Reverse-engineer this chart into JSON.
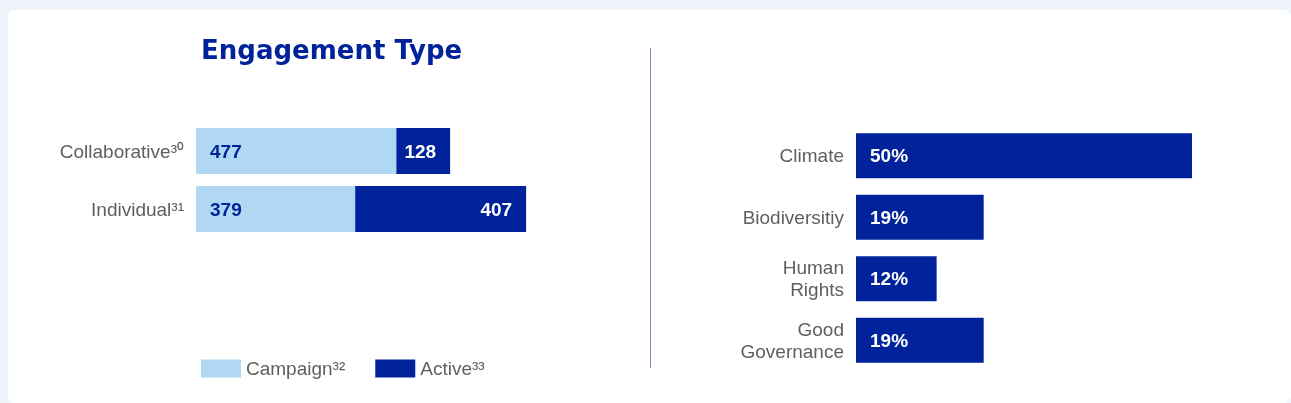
{
  "chart_data": [
    {
      "type": "bar",
      "title": "Engagement Type",
      "orientation": "horizontal",
      "stacked": true,
      "data_labels": true,
      "legend": "bottom",
      "categories": [
        "Collaborative³⁰",
        "Individual³¹"
      ],
      "series": [
        {
          "name": "Campaign³²",
          "color": "#b0d8f2",
          "values": [
            477,
            379
          ]
        },
        {
          "name": "Active³³",
          "color": "#00239c",
          "values": [
            128,
            407
          ]
        }
      ]
    },
    {
      "type": "bar",
      "orientation": "horizontal",
      "categories": [
        "Climate",
        "Biodiversitiy",
        "Human\nRights",
        "Good\nGovernance"
      ],
      "color": "#00239c",
      "values": [
        50,
        19,
        12,
        19
      ],
      "value_labels": [
        "50%",
        "19%",
        "12%",
        "19%"
      ]
    }
  ]
}
